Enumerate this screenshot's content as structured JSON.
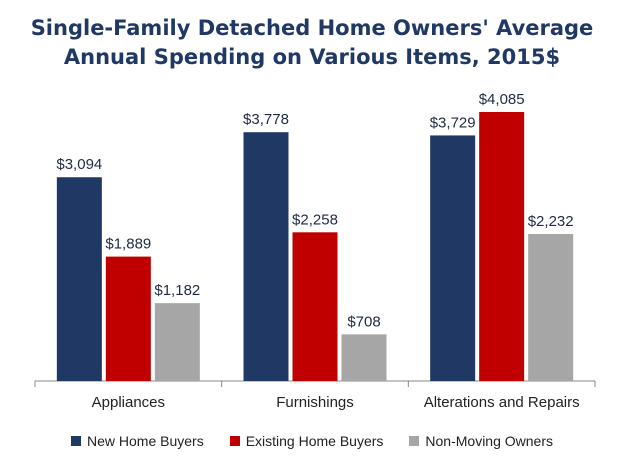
{
  "chart_data": {
    "type": "bar",
    "title_lines": [
      "Single-Family Detached Home Owners' Average",
      "Annual Spending on Various Items, 2015$"
    ],
    "categories": [
      "Appliances",
      "Furnishings",
      "Alterations and Repairs"
    ],
    "series": [
      {
        "name": "New Home Buyers",
        "color": "#1f3864",
        "values": [
          3094,
          3778,
          3729
        ],
        "labels": [
          "$3,094",
          "$3,778",
          "$3,729"
        ]
      },
      {
        "name": "Existing Home Buyers",
        "color": "#c00000",
        "values": [
          1889,
          2258,
          4085
        ],
        "labels": [
          "$1,889",
          "$2,258",
          "$4,085"
        ]
      },
      {
        "name": "Non-Moving Owners",
        "color": "#a6a6a6",
        "values": [
          1182,
          708,
          2232
        ],
        "labels": [
          "$1,182",
          "$708",
          "$2,232"
        ]
      }
    ],
    "ylim": [
      0,
      4100
    ],
    "grid": false,
    "legend_position": "bottom"
  }
}
